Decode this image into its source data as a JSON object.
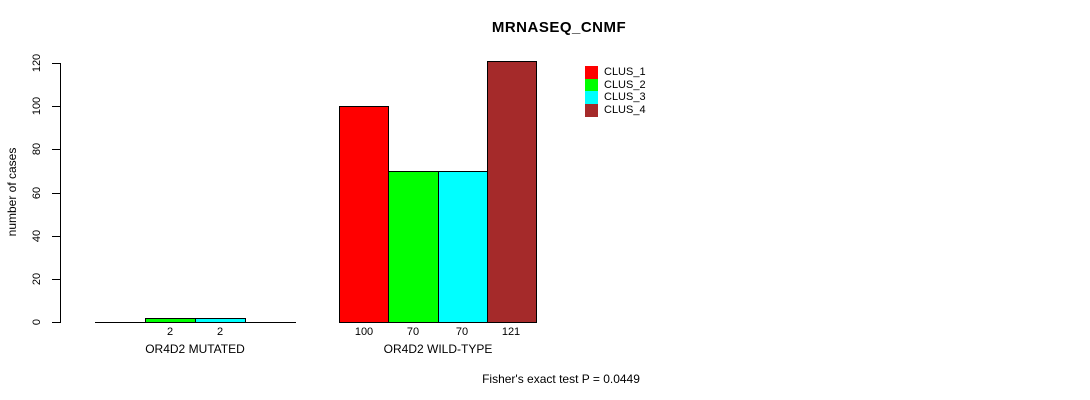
{
  "chart_data": {
    "type": "bar",
    "title": "MRNASEQ_CNMF",
    "ylabel": "number of cases",
    "xlabel": "",
    "ylim": [
      0,
      120
    ],
    "y_ticks": [
      0,
      20,
      40,
      60,
      80,
      100,
      120
    ],
    "grid": false,
    "legend_position": "top-right",
    "categories": [
      "OR4D2 MUTATED",
      "OR4D2 WILD-TYPE"
    ],
    "series": [
      {
        "name": "CLUS_1",
        "color": "#FF0000",
        "values": [
          0,
          100
        ]
      },
      {
        "name": "CLUS_2",
        "color": "#00FF00",
        "values": [
          2,
          70
        ]
      },
      {
        "name": "CLUS_3",
        "color": "#00FFFF",
        "values": [
          2,
          70
        ]
      },
      {
        "name": "CLUS_4",
        "color": "#A52A2A",
        "values": [
          0,
          121
        ]
      }
    ],
    "bar_labels": [
      [
        "",
        "2",
        "2",
        ""
      ],
      [
        "100",
        "70",
        "70",
        "121"
      ]
    ],
    "annotation": "Fisher's exact test P = 0.0449"
  }
}
